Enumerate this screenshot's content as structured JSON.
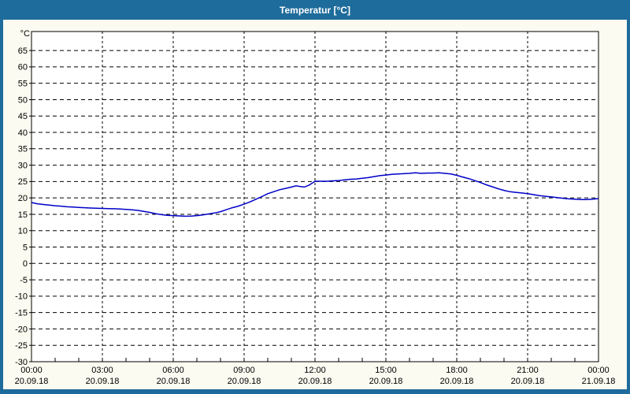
{
  "window": {
    "title": "Temperatur [°C]"
  },
  "colors": {
    "titlebar_bg": "#1E6C9B",
    "titlebar_text": "#FFFFFF",
    "window_border": "#1E6C9B",
    "content_bg": "#FBFBF1",
    "plot_bg": "#FFFFFF",
    "frame": "#000000",
    "grid": "#000000",
    "line": "#0000C8",
    "label_text": "#000000"
  },
  "chart_data": {
    "type": "line",
    "title": "Temperatur [°C]",
    "ylabel": "°C",
    "xlabel": "",
    "grid": true,
    "legend_position": "none",
    "y_axis": {
      "unit": "°C",
      "min": -30,
      "max": 70.8,
      "tick_step": 5,
      "label_min": -30,
      "label_max": 65
    },
    "x_axis": {
      "start_hour": 0,
      "end_hour": 24,
      "major_step_hours": 3,
      "minor_step_hours": 1,
      "ticks": [
        {
          "time": "00:00",
          "date": "20.09.18"
        },
        {
          "time": "03:00",
          "date": "20.09.18"
        },
        {
          "time": "06:00",
          "date": "20.09.18"
        },
        {
          "time": "09:00",
          "date": "20.09.18"
        },
        {
          "time": "12:00",
          "date": "20.09.18"
        },
        {
          "time": "15:00",
          "date": "20.09.18"
        },
        {
          "time": "18:00",
          "date": "20.09.18"
        },
        {
          "time": "21:00",
          "date": "20.09.18"
        },
        {
          "time": "00:00",
          "date": "21.09.18"
        }
      ]
    },
    "series": [
      {
        "name": "Temperatur",
        "color": "#0000C8",
        "points": [
          [
            0,
            18.6
          ],
          [
            0.25,
            18.2
          ],
          [
            0.5,
            18.0
          ],
          [
            0.75,
            17.8
          ],
          [
            1,
            17.6
          ],
          [
            1.25,
            17.5
          ],
          [
            1.5,
            17.3
          ],
          [
            1.75,
            17.2
          ],
          [
            2,
            17.1
          ],
          [
            2.25,
            17.0
          ],
          [
            2.5,
            16.9
          ],
          [
            2.75,
            16.85
          ],
          [
            3,
            16.8
          ],
          [
            3.25,
            16.75
          ],
          [
            3.5,
            16.7
          ],
          [
            3.75,
            16.6
          ],
          [
            4,
            16.5
          ],
          [
            4.25,
            16.35
          ],
          [
            4.5,
            16.2
          ],
          [
            4.75,
            15.9
          ],
          [
            5,
            15.6
          ],
          [
            5.25,
            15.2
          ],
          [
            5.5,
            14.9
          ],
          [
            5.75,
            14.7
          ],
          [
            6,
            14.6
          ],
          [
            6.25,
            14.5
          ],
          [
            6.5,
            14.4
          ],
          [
            6.75,
            14.45
          ],
          [
            7,
            14.6
          ],
          [
            7.25,
            14.8
          ],
          [
            7.5,
            15.1
          ],
          [
            7.75,
            15.4
          ],
          [
            8,
            15.8
          ],
          [
            8.25,
            16.4
          ],
          [
            8.5,
            17.0
          ],
          [
            8.75,
            17.5
          ],
          [
            9,
            18.1
          ],
          [
            9.25,
            18.8
          ],
          [
            9.5,
            19.6
          ],
          [
            9.75,
            20.4
          ],
          [
            10,
            21.3
          ],
          [
            10.25,
            21.9
          ],
          [
            10.5,
            22.5
          ],
          [
            10.75,
            22.9
          ],
          [
            11,
            23.3
          ],
          [
            11.2,
            23.7
          ],
          [
            11.35,
            23.5
          ],
          [
            11.55,
            23.3
          ],
          [
            11.75,
            23.9
          ],
          [
            11.9,
            24.6
          ],
          [
            12,
            25.1
          ],
          [
            12.25,
            25.1
          ],
          [
            12.5,
            25.1
          ],
          [
            12.75,
            25.2
          ],
          [
            13,
            25.3
          ],
          [
            13.25,
            25.5
          ],
          [
            13.5,
            25.7
          ],
          [
            13.75,
            25.8
          ],
          [
            14,
            26.0
          ],
          [
            14.25,
            26.2
          ],
          [
            14.5,
            26.5
          ],
          [
            14.75,
            26.8
          ],
          [
            15,
            27.0
          ],
          [
            15.25,
            27.2
          ],
          [
            15.5,
            27.3
          ],
          [
            15.75,
            27.4
          ],
          [
            16,
            27.5
          ],
          [
            16.25,
            27.7
          ],
          [
            16.5,
            27.5
          ],
          [
            16.75,
            27.6
          ],
          [
            17,
            27.6
          ],
          [
            17.25,
            27.7
          ],
          [
            17.5,
            27.5
          ],
          [
            17.75,
            27.3
          ],
          [
            18,
            26.9
          ],
          [
            18.25,
            26.4
          ],
          [
            18.5,
            25.9
          ],
          [
            18.75,
            25.3
          ],
          [
            19,
            24.7
          ],
          [
            19.25,
            24.0
          ],
          [
            19.5,
            23.4
          ],
          [
            19.75,
            22.8
          ],
          [
            20,
            22.3
          ],
          [
            20.25,
            21.9
          ],
          [
            20.5,
            21.7
          ],
          [
            20.75,
            21.5
          ],
          [
            21,
            21.3
          ],
          [
            21.25,
            21.0
          ],
          [
            21.5,
            20.7
          ],
          [
            21.75,
            20.5
          ],
          [
            22,
            20.3
          ],
          [
            22.25,
            20.1
          ],
          [
            22.5,
            19.9
          ],
          [
            22.75,
            19.7
          ],
          [
            23,
            19.6
          ],
          [
            23.25,
            19.5
          ],
          [
            23.5,
            19.5
          ],
          [
            23.75,
            19.6
          ],
          [
            24,
            19.8
          ]
        ]
      }
    ]
  }
}
